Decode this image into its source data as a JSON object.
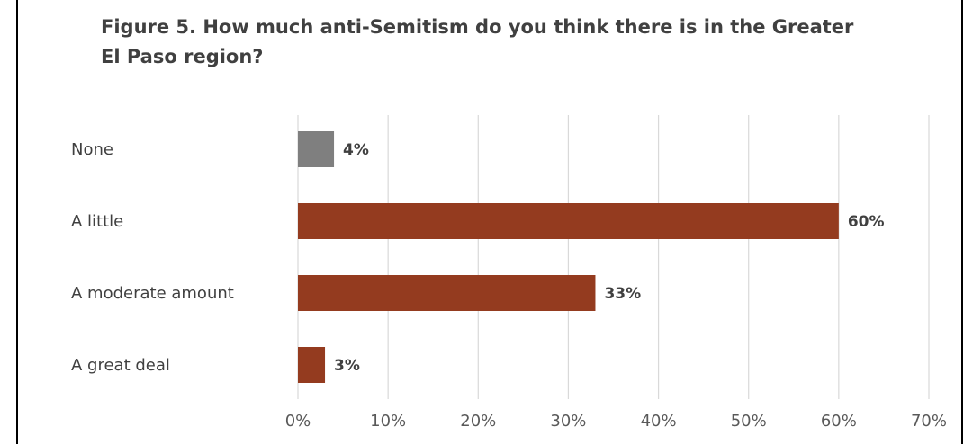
{
  "chart_data": {
    "type": "bar",
    "orientation": "horizontal",
    "title": "Figure 5. How much anti-Semitism do you think there is in the Greater El Paso region?",
    "categories": [
      "None",
      "A little",
      "A moderate amount",
      "A great deal"
    ],
    "values": [
      4,
      60,
      33,
      3
    ],
    "data_labels": [
      "4%",
      "60%",
      "33%",
      "3%"
    ],
    "bar_colors": [
      "#7f7f7f",
      "#943b1f",
      "#943b1f",
      "#943b1f"
    ],
    "xlim": [
      0,
      70
    ],
    "x_ticks": [
      0,
      10,
      20,
      30,
      40,
      50,
      60,
      70
    ],
    "x_tick_labels": [
      "0%",
      "10%",
      "20%",
      "30%",
      "40%",
      "50%",
      "60%",
      "70%"
    ],
    "xlabel": "",
    "ylabel": "",
    "grid": true,
    "gridline_color": "#d9d9d9",
    "legend": "none"
  }
}
